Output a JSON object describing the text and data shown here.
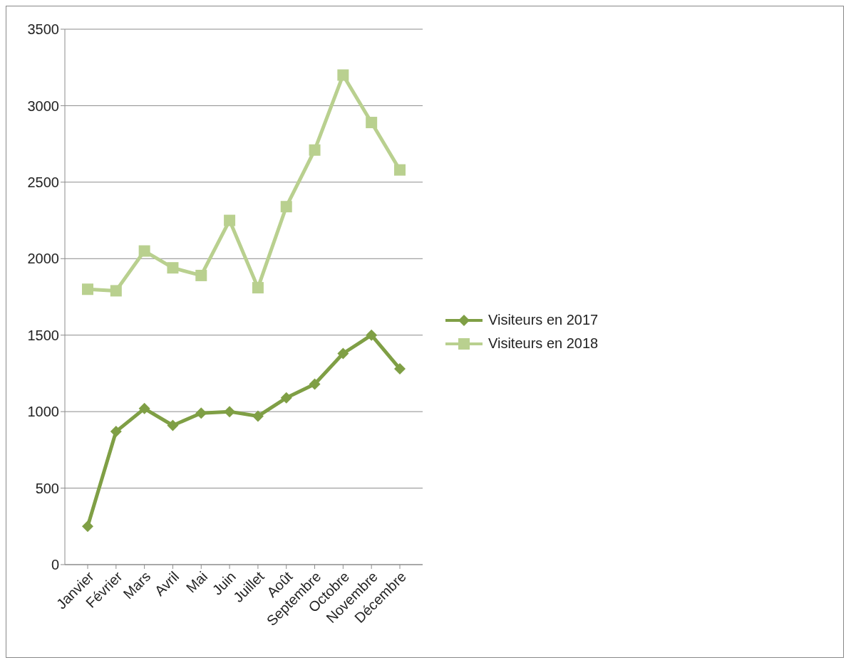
{
  "chart_data": {
    "type": "line",
    "categories": [
      "Janvier",
      "Février",
      "Mars",
      "Avril",
      "Mai",
      "Juin",
      "Juillet",
      "Août",
      "Septembre",
      "Octobre",
      "Novembre",
      "Décembre"
    ],
    "series": [
      {
        "name": "Visiteurs en 2017",
        "color": "#7f9f45",
        "marker": "diamond",
        "values": [
          250,
          870,
          1020,
          910,
          990,
          1000,
          970,
          1090,
          1180,
          1380,
          1500,
          1280
        ]
      },
      {
        "name": "Visiteurs en 2018",
        "color": "#b9d08f",
        "marker": "square",
        "values": [
          1800,
          1790,
          2050,
          1940,
          1890,
          2250,
          1810,
          2340,
          2710,
          3200,
          2890,
          2580
        ]
      }
    ],
    "ylim": [
      0,
      3500
    ],
    "yticks": [
      0,
      500,
      1000,
      1500,
      2000,
      2500,
      3000,
      3500
    ],
    "grid": "y",
    "legend": "right",
    "line_style": "solid"
  }
}
